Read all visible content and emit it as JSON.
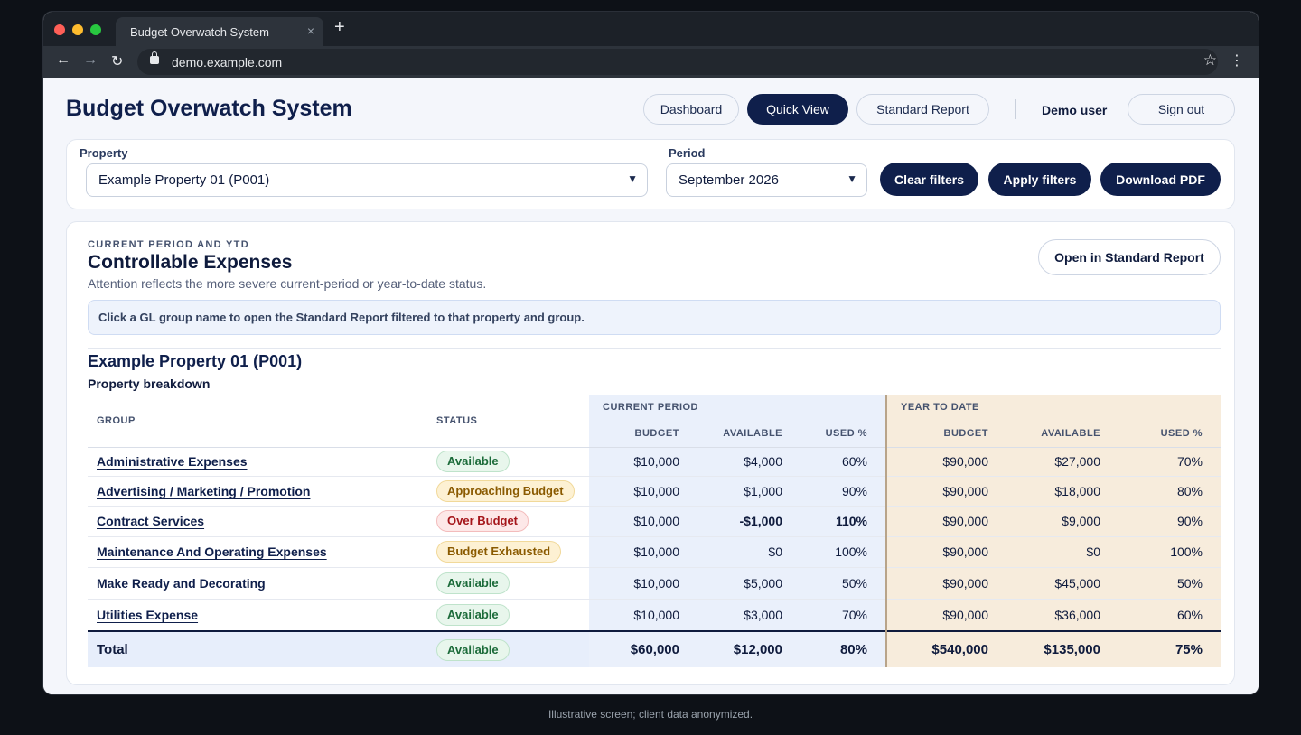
{
  "browser": {
    "tab_title": "Budget Overwatch System",
    "tab_close": "×",
    "new_tab": "+",
    "url": "demo.example.com"
  },
  "header": {
    "title": "Budget Overwatch System",
    "nav": [
      "Dashboard",
      "Quick View",
      "Standard Report"
    ],
    "active_nav": "Quick View",
    "user": "Demo user",
    "sign_out": "Sign out"
  },
  "filters": {
    "property_label": "Property",
    "property_value": "Example Property 01 (P001)",
    "period_label": "Period",
    "period_value": "September 2026",
    "clear": "Clear filters",
    "apply": "Apply filters",
    "download": "Download PDF"
  },
  "section": {
    "eyebrow": "CURRENT PERIOD AND YTD",
    "title": "Controllable Expenses",
    "subtitle": "Attention reflects the more severe current-period or year-to-date status.",
    "open_button": "Open in Standard Report",
    "hint": "Click a GL group name to open the Standard Report filtered to that property and group.",
    "property_name": "Example Property 01 (P001)",
    "breakdown": "Property breakdown"
  },
  "table": {
    "headers": {
      "group": "GROUP",
      "status": "STATUS",
      "current_period": "CURRENT PERIOD",
      "year_to_date": "YEAR TO DATE",
      "budget": "BUDGET",
      "available": "AVAILABLE",
      "used": "USED %"
    },
    "rows": [
      {
        "group": "Administrative Expenses",
        "status": "Available",
        "cp_budget": "$10,000",
        "cp_available": "$4,000",
        "cp_used": "60%",
        "ytd_budget": "$90,000",
        "ytd_available": "$27,000",
        "ytd_used": "70%"
      },
      {
        "group": "Advertising / Marketing / Promotion",
        "status": "Approaching Budget",
        "cp_budget": "$10,000",
        "cp_available": "$1,000",
        "cp_used": "90%",
        "ytd_budget": "$90,000",
        "ytd_available": "$18,000",
        "ytd_used": "80%"
      },
      {
        "group": "Contract Services",
        "status": "Over Budget",
        "cp_budget": "$10,000",
        "cp_available": "-$1,000",
        "cp_used": "110%",
        "ytd_budget": "$90,000",
        "ytd_available": "$9,000",
        "ytd_used": "90%"
      },
      {
        "group": "Maintenance And Operating Expenses",
        "status": "Budget Exhausted",
        "cp_budget": "$10,000",
        "cp_available": "$0",
        "cp_used": "100%",
        "ytd_budget": "$90,000",
        "ytd_available": "$0",
        "ytd_used": "100%"
      },
      {
        "group": "Make Ready and Decorating",
        "status": "Available",
        "cp_budget": "$10,000",
        "cp_available": "$5,000",
        "cp_used": "50%",
        "ytd_budget": "$90,000",
        "ytd_available": "$45,000",
        "ytd_used": "50%"
      },
      {
        "group": "Utilities Expense",
        "status": "Available",
        "cp_budget": "$10,000",
        "cp_available": "$3,000",
        "cp_used": "70%",
        "ytd_budget": "$90,000",
        "ytd_available": "$36,000",
        "ytd_used": "60%"
      }
    ],
    "total": {
      "label": "Total",
      "status": "Available",
      "cp_budget": "$60,000",
      "cp_available": "$12,000",
      "cp_used": "80%",
      "ytd_budget": "$540,000",
      "ytd_available": "$135,000",
      "ytd_used": "75%"
    }
  },
  "colors": {
    "navy": "#0f1f4b",
    "available": "#1c6b3a",
    "warning": "#8a5a00",
    "danger": "#b3151b"
  },
  "footnote": "Illustrative screen; client data anonymized."
}
